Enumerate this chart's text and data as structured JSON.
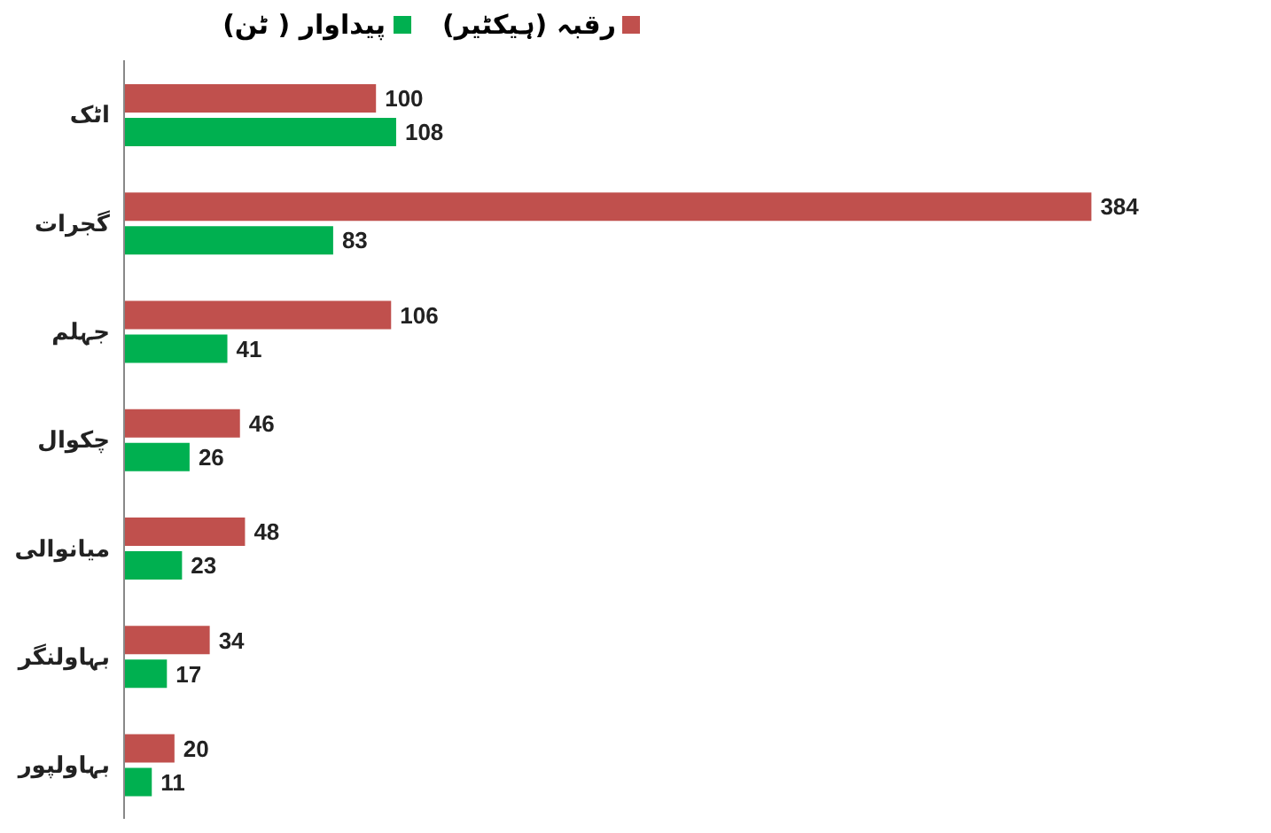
{
  "chart_data": {
    "type": "bar",
    "orientation": "horizontal",
    "categories": [
      "اٹک",
      "گجرات",
      "جہلم",
      "چکوال",
      "میانوالی",
      "بہاولنگر",
      "بہاولپور"
    ],
    "series": [
      {
        "name": "رقبہ (ہیکٹیر)",
        "color": "#c0504d",
        "values": [
          100,
          384,
          106,
          46,
          48,
          34,
          20
        ]
      },
      {
        "name": "پیداوار ( ٹن)",
        "color": "#00b050",
        "values": [
          108,
          83,
          41,
          26,
          23,
          17,
          11
        ]
      }
    ],
    "data_labels": true,
    "legend": "top",
    "grid": false
  }
}
